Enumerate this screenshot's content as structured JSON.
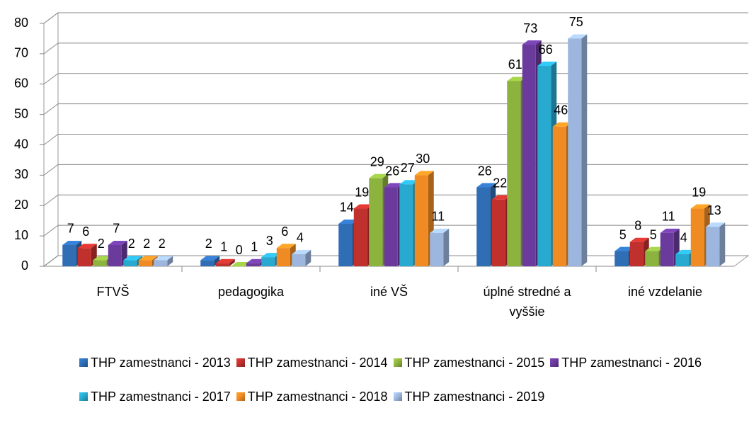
{
  "chart_data": {
    "type": "bar3d",
    "categories": [
      "FTVŠ",
      "pedagogika",
      "iné VŠ",
      "úplné stredné a vyššie",
      "iné vzdelanie"
    ],
    "series": [
      {
        "name": "THP zamestnanci - 2013",
        "color": "#2f6db5",
        "values": [
          7,
          2,
          14,
          26,
          5
        ]
      },
      {
        "name": "THP zamestnanci - 2014",
        "color": "#c0302c",
        "values": [
          6,
          1,
          19,
          22,
          8
        ]
      },
      {
        "name": "THP zamestnanci - 2015",
        "color": "#8db33f",
        "values": [
          2,
          0,
          29,
          61,
          5
        ]
      },
      {
        "name": "THP zamestnanci - 2016",
        "color": "#6a3a9c",
        "values": [
          7,
          1,
          26,
          73,
          11
        ]
      },
      {
        "name": "THP zamestnanci - 2017",
        "color": "#28a9cf",
        "values": [
          2,
          3,
          27,
          66,
          4
        ]
      },
      {
        "name": "THP zamestnanci - 2018",
        "color": "#f08a22",
        "values": [
          2,
          6,
          30,
          46,
          19
        ]
      },
      {
        "name": "THP zamestnanci - 2019",
        "color": "#9cb6dd",
        "values": [
          2,
          4,
          11,
          75,
          13
        ]
      }
    ],
    "ylim": [
      0,
      80
    ],
    "yticks": [
      0,
      10,
      20,
      30,
      40,
      50,
      60,
      70,
      80
    ],
    "grid": true,
    "legend": "bottom"
  }
}
